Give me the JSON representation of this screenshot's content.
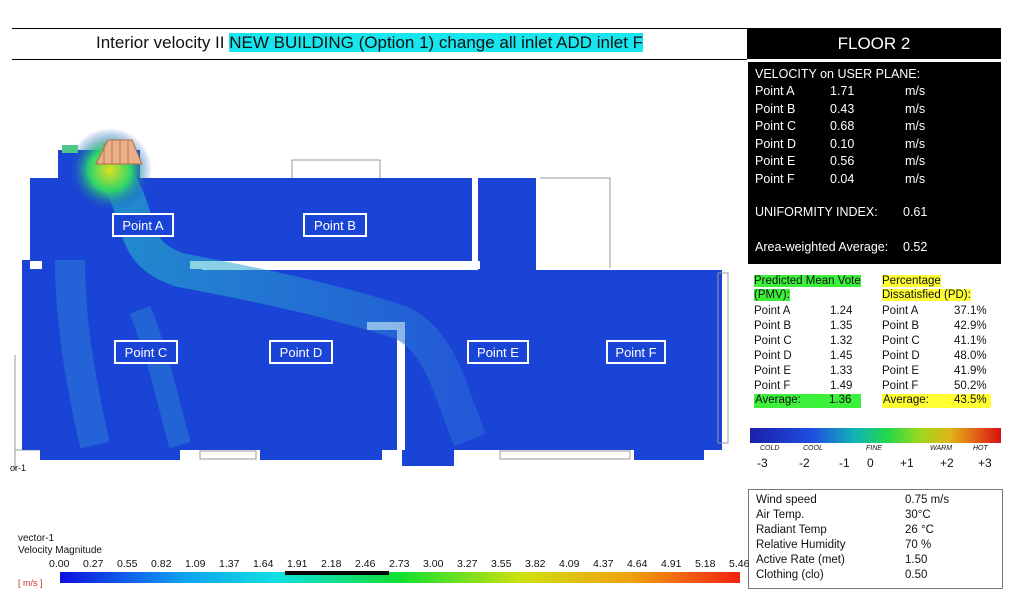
{
  "title": {
    "plain": "Interior velocity II ",
    "highlight": "NEW BUILDING (Option 1) change all inlet ADD inlet F"
  },
  "floor_label": "FLOOR 2",
  "velocity_panel": {
    "header": "VELOCITY on USER PLANE:",
    "points": [
      {
        "name": "Point A",
        "value": "1.71",
        "unit": "m/s"
      },
      {
        "name": "Point B",
        "value": "0.43",
        "unit": "m/s"
      },
      {
        "name": "Point C",
        "value": "0.68",
        "unit": "m/s"
      },
      {
        "name": "Point D",
        "value": "0.10",
        "unit": "m/s"
      },
      {
        "name": "Point E",
        "value": "0.56",
        "unit": "m/s"
      },
      {
        "name": "Point F",
        "value": "0.04",
        "unit": "m/s"
      }
    ],
    "uniformity_label": "UNIFORMITY INDEX:",
    "uniformity_value": "0.61",
    "area_avg_label": "Area-weighted Average:",
    "area_avg_value": "0.52"
  },
  "pmv": {
    "header_line1": "Predicted Mean Vote",
    "header_line2": "(PMV):",
    "rows": [
      {
        "name": "Point A",
        "value": "1.24"
      },
      {
        "name": "Point B",
        "value": "1.35"
      },
      {
        "name": "Point C",
        "value": "1.32"
      },
      {
        "name": "Point D",
        "value": "1.45"
      },
      {
        "name": "Point E",
        "value": "1.33"
      },
      {
        "name": "Point F",
        "value": "1.49"
      }
    ],
    "avg_label": "Average:",
    "avg_value": "1.36"
  },
  "pd": {
    "header_line1": "Percentage",
    "header_line2": "Dissatisfied (PD):",
    "rows": [
      {
        "name": "Point A",
        "value": "37.1%"
      },
      {
        "name": "Point B",
        "value": "42.9%"
      },
      {
        "name": "Point C",
        "value": "41.1%"
      },
      {
        "name": "Point D",
        "value": "48.0%"
      },
      {
        "name": "Point E",
        "value": "41.9%"
      },
      {
        "name": "Point F",
        "value": "50.2%"
      }
    ],
    "avg_label": "Average:",
    "avg_value": "43.5%"
  },
  "pmv_scale": {
    "words": [
      "COLD",
      "COOL",
      "FINE",
      "WARM",
      "HOT"
    ],
    "ticks": [
      "-3",
      "-2",
      "-1",
      "0",
      "+1",
      "+2",
      "+3"
    ]
  },
  "conditions": [
    {
      "label": "Wind speed",
      "value": "0.75 m/s"
    },
    {
      "label": "Air Temp.",
      "value": "30°C"
    },
    {
      "label": "Radiant Temp",
      "value": "26 °C"
    },
    {
      "label": "Relative Humidity",
      "value": "70 %"
    },
    {
      "label": "Active Rate (met)",
      "value": "1.50"
    },
    {
      "label": "Clothing (clo)",
      "value": "0.50"
    }
  ],
  "plot": {
    "points": [
      "Point A",
      "Point B",
      "Point C",
      "Point D",
      "Point E",
      "Point F"
    ],
    "edge_label": "or-1"
  },
  "legend": {
    "name": "vector-1",
    "quantity": "Velocity Magnitude",
    "unit": "[ m/s ]",
    "ticks": [
      "0.00",
      "0.27",
      "0.55",
      "0.82",
      "1.09",
      "1.37",
      "1.64",
      "1.91",
      "2.18",
      "2.46",
      "2.73",
      "3.00",
      "3.27",
      "3.55",
      "3.82",
      "4.09",
      "4.37",
      "4.64",
      "4.91",
      "5.18",
      "5.46"
    ]
  },
  "colors": {
    "title_highlight": "#19e5ef",
    "pmv_highlight": "#3cf03c",
    "pd_highlight": "#ffff33",
    "flow_field": "#1a3fd0"
  }
}
